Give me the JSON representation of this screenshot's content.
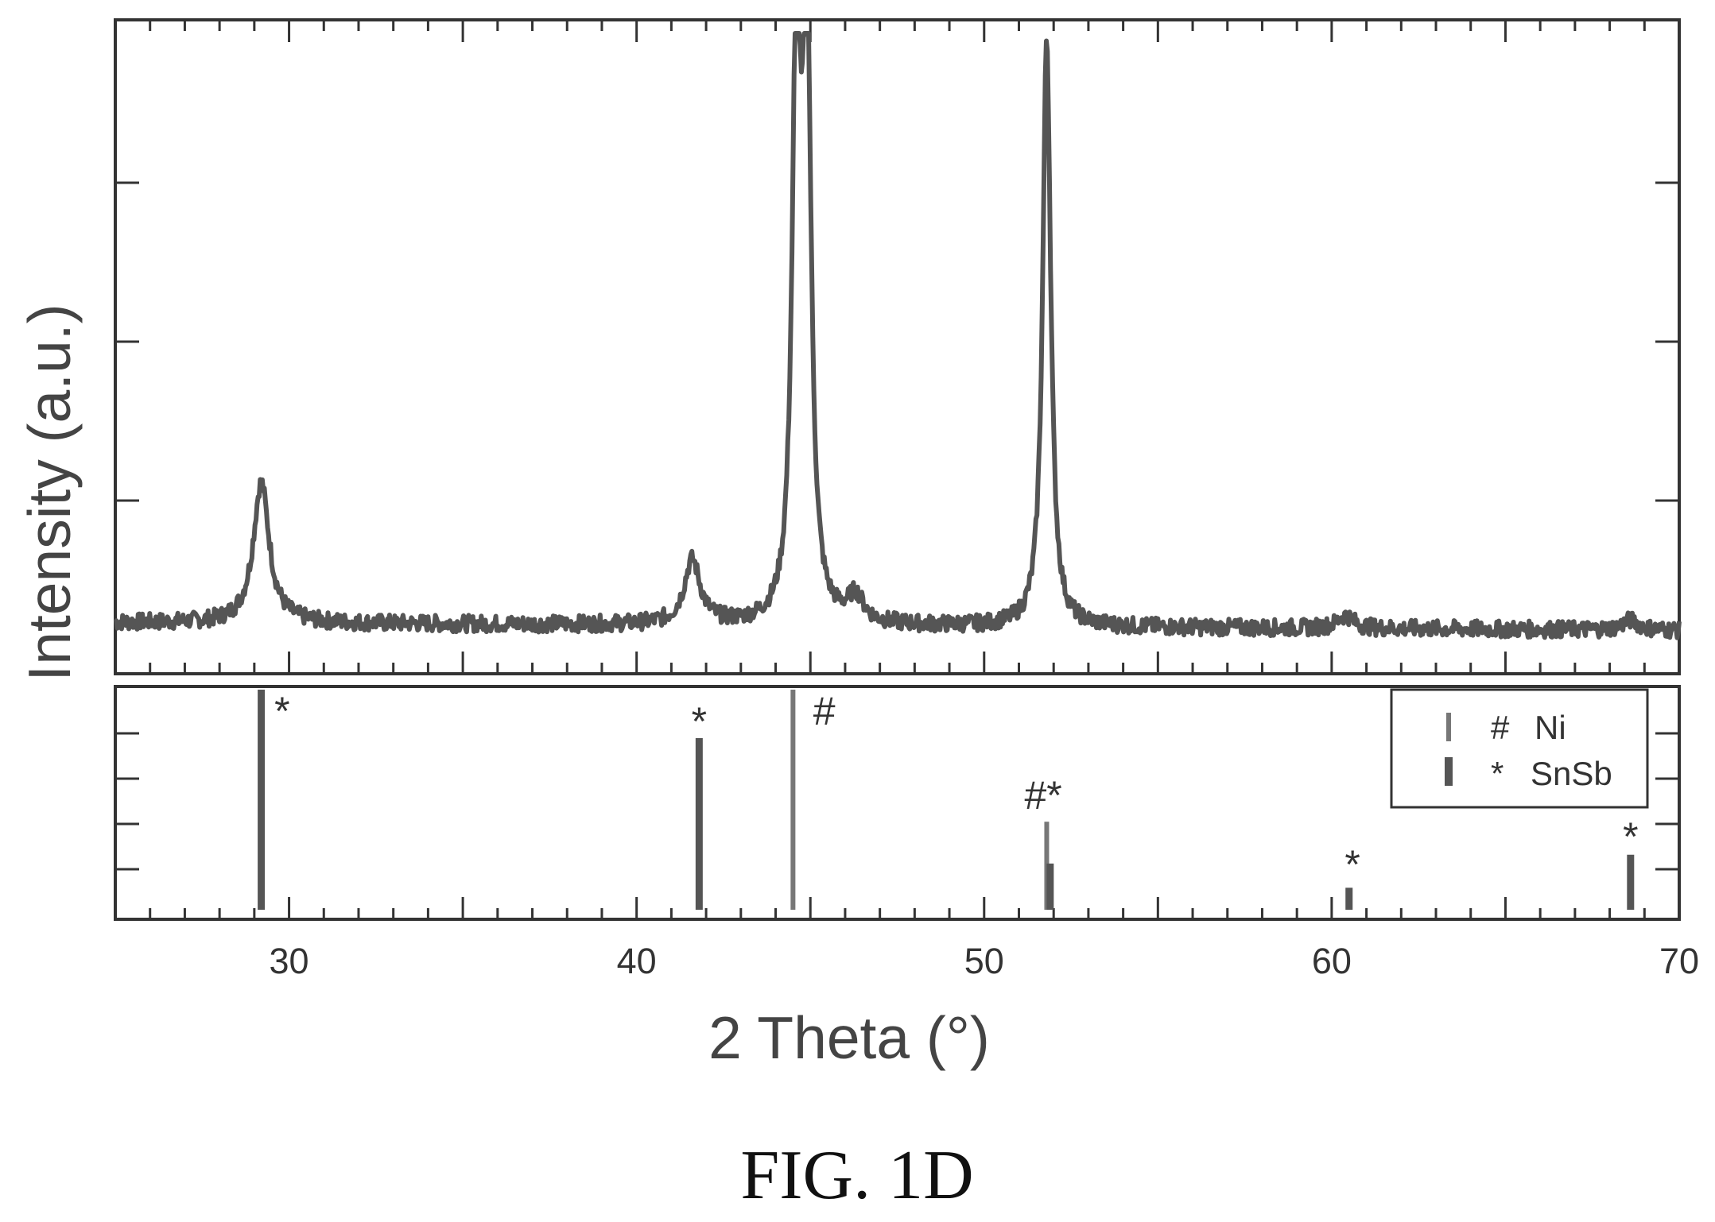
{
  "chart_data": {
    "type": "line",
    "caption": "FIG. 1D",
    "xlabel": "2 Theta (°)",
    "ylabel": "Intensity (a.u.)",
    "xlim": [
      25,
      70
    ],
    "x_ticks": [
      30,
      40,
      50,
      60,
      70
    ],
    "x_tick_labels": [
      "30",
      "40",
      "50",
      "60",
      "70"
    ],
    "y_tick_labels_shown": false,
    "grid": false,
    "panels": [
      {
        "type": "line",
        "position": "top",
        "ylim": [
          0,
          100
        ],
        "series": [
          {
            "name": "",
            "baseline": 8,
            "noise_amplitude": 1.3,
            "peaks": [
              {
                "x": 29.2,
                "y": 30
              },
              {
                "x": 41.6,
                "y": 18
              },
              {
                "x": 44.6,
                "y": 100
              },
              {
                "x": 44.9,
                "y": 100
              },
              {
                "x": 46.3,
                "y": 12
              },
              {
                "x": 51.8,
                "y": 100
              },
              {
                "x": 60.4,
                "y": 10
              },
              {
                "x": 68.6,
                "y": 9.5
              }
            ]
          }
        ]
      },
      {
        "type": "bar",
        "position": "bottom",
        "ylim": [
          0,
          100
        ],
        "legend_position": "top-right",
        "legend": [
          {
            "marker": "#",
            "label": "Ni",
            "color": "#777777"
          },
          {
            "marker": "*",
            "label": "SnSb",
            "color": "#555555"
          }
        ],
        "series": [
          {
            "name": "Ni",
            "marker": "#",
            "x": [
              44.5,
              51.8
            ],
            "values": [
              100,
              40
            ]
          },
          {
            "name": "SnSb",
            "marker": "*",
            "x": [
              29.2,
              41.8,
              51.9,
              60.5,
              68.6
            ],
            "values": [
              100,
              78,
              21,
              10,
              25
            ]
          }
        ],
        "annotations": [
          {
            "text": "*",
            "x": 29.8
          },
          {
            "text": "*",
            "x": 41.8
          },
          {
            "text": "#",
            "x": 45.4
          },
          {
            "text": "#*",
            "x": 51.7
          },
          {
            "text": "*",
            "x": 60.6
          },
          {
            "text": "*",
            "x": 68.6
          }
        ]
      }
    ]
  }
}
